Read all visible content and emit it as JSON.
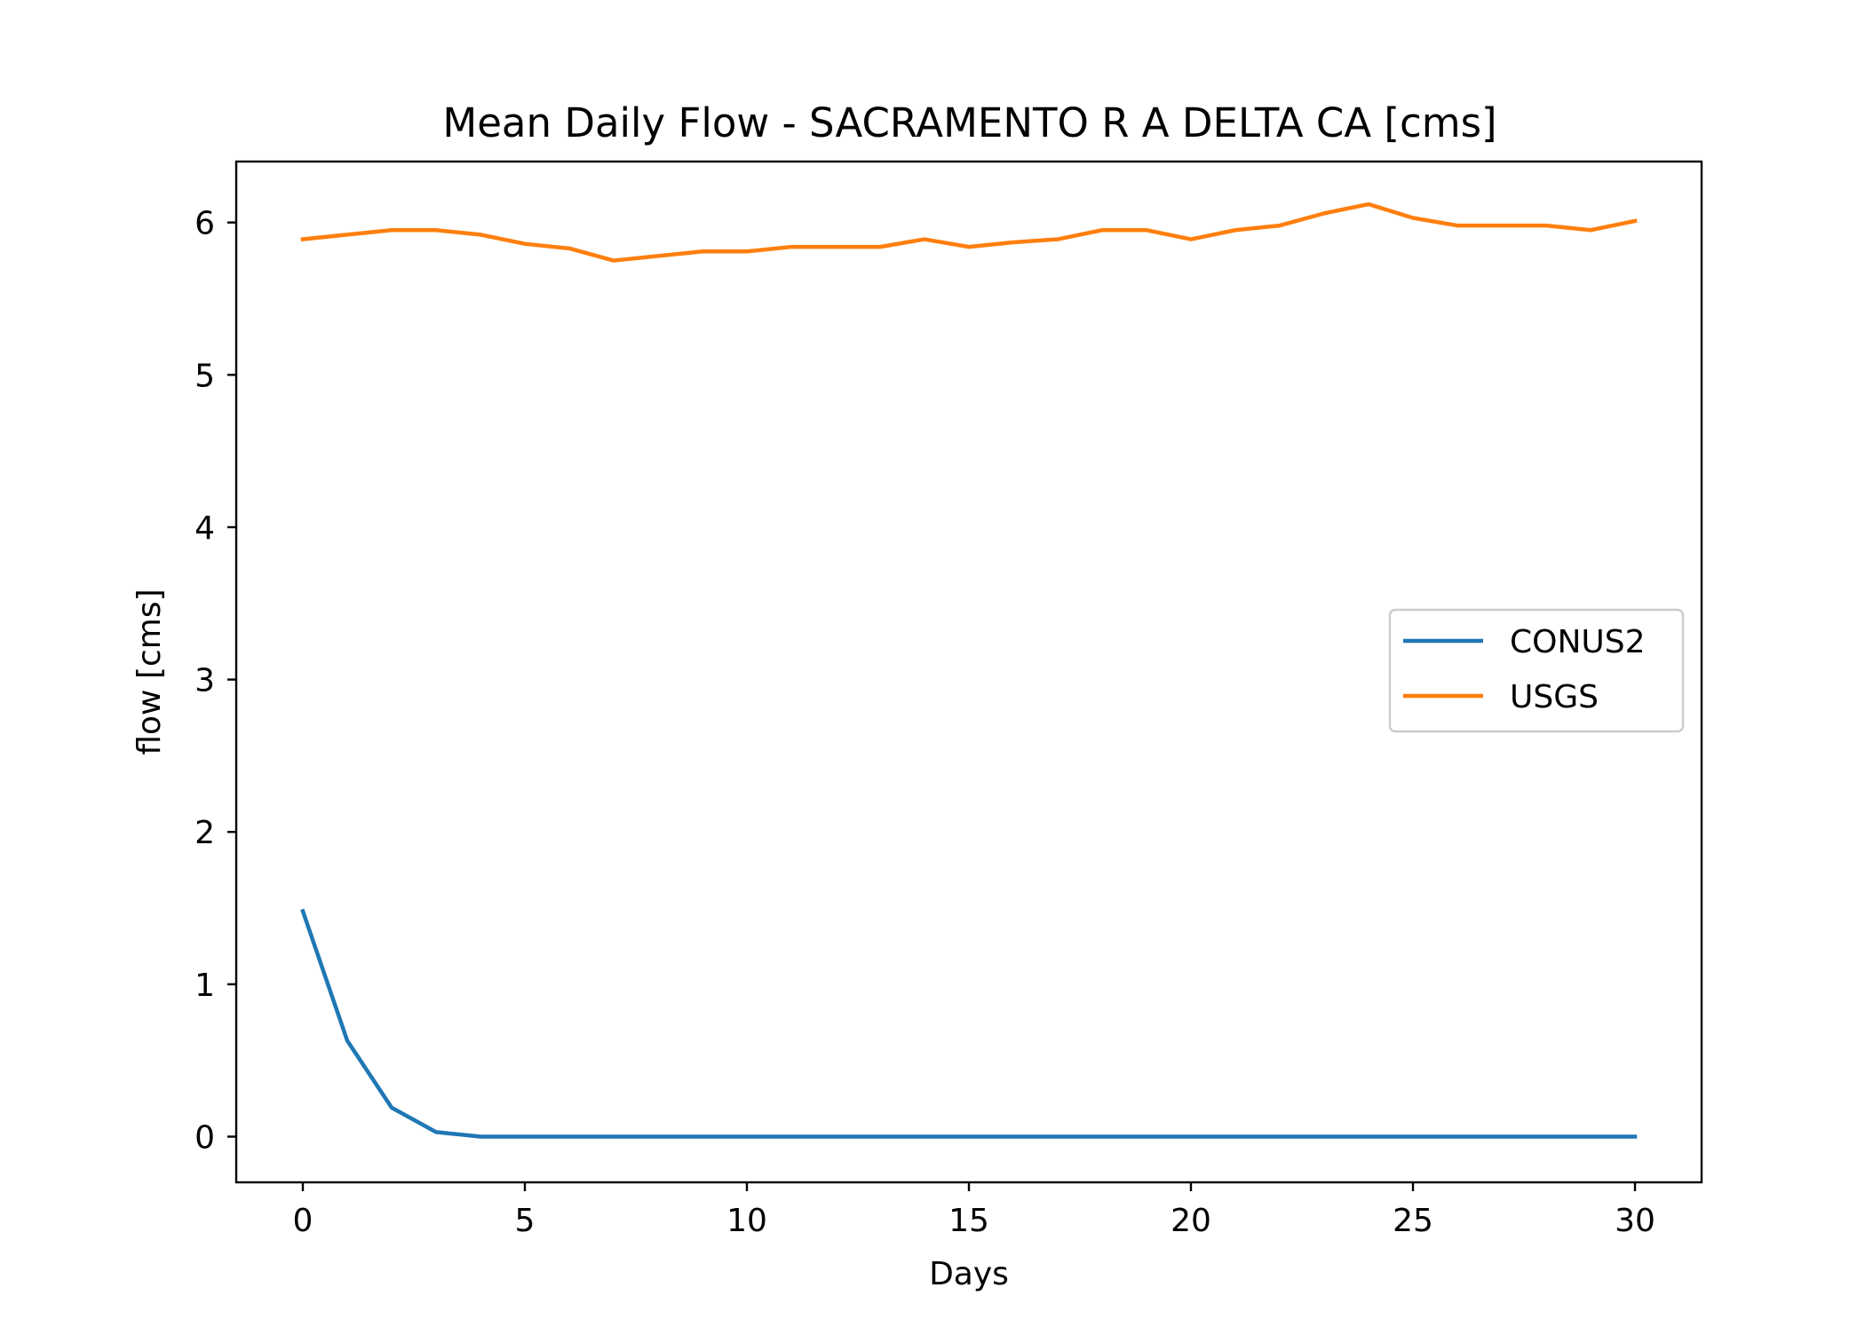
{
  "chart_data": {
    "type": "line",
    "title": "Mean Daily Flow - SACRAMENTO R A DELTA CA [cms]",
    "xlabel": "Days",
    "ylabel": "flow [cms]",
    "xlim": [
      -1.5,
      31.5
    ],
    "ylim": [
      -0.3,
      6.4
    ],
    "xticks": [
      0,
      5,
      10,
      15,
      20,
      25,
      30
    ],
    "yticks": [
      0,
      1,
      2,
      3,
      4,
      5,
      6
    ],
    "xtick_labels": [
      "0",
      "5",
      "10",
      "15",
      "20",
      "25",
      "30"
    ],
    "ytick_labels": [
      "0",
      "1",
      "2",
      "3",
      "4",
      "5",
      "6"
    ],
    "grid": false,
    "legend_position": "center-right",
    "x": [
      0,
      1,
      2,
      3,
      4,
      5,
      6,
      7,
      8,
      9,
      10,
      11,
      12,
      13,
      14,
      15,
      16,
      17,
      18,
      19,
      20,
      21,
      22,
      23,
      24,
      25,
      26,
      27,
      28,
      29,
      30
    ],
    "series": [
      {
        "name": "CONUS2",
        "color": "#1f77b4",
        "values": [
          1.48,
          0.63,
          0.19,
          0.03,
          0.0,
          0.0,
          0.0,
          0.0,
          0.0,
          0.0,
          0.0,
          0.0,
          0.0,
          0.0,
          0.0,
          0.0,
          0.0,
          0.0,
          0.0,
          0.0,
          0.0,
          0.0,
          0.0,
          0.0,
          0.0,
          0.0,
          0.0,
          0.0,
          0.0,
          0.0,
          0.0
        ]
      },
      {
        "name": "USGS",
        "color": "#ff7f0e",
        "values": [
          5.89,
          5.92,
          5.95,
          5.95,
          5.92,
          5.86,
          5.83,
          5.75,
          5.78,
          5.81,
          5.81,
          5.84,
          5.84,
          5.84,
          5.89,
          5.84,
          5.87,
          5.89,
          5.95,
          5.95,
          5.89,
          5.95,
          5.98,
          6.06,
          6.12,
          6.03,
          5.98,
          5.98,
          5.98,
          5.95,
          6.01
        ]
      }
    ]
  }
}
